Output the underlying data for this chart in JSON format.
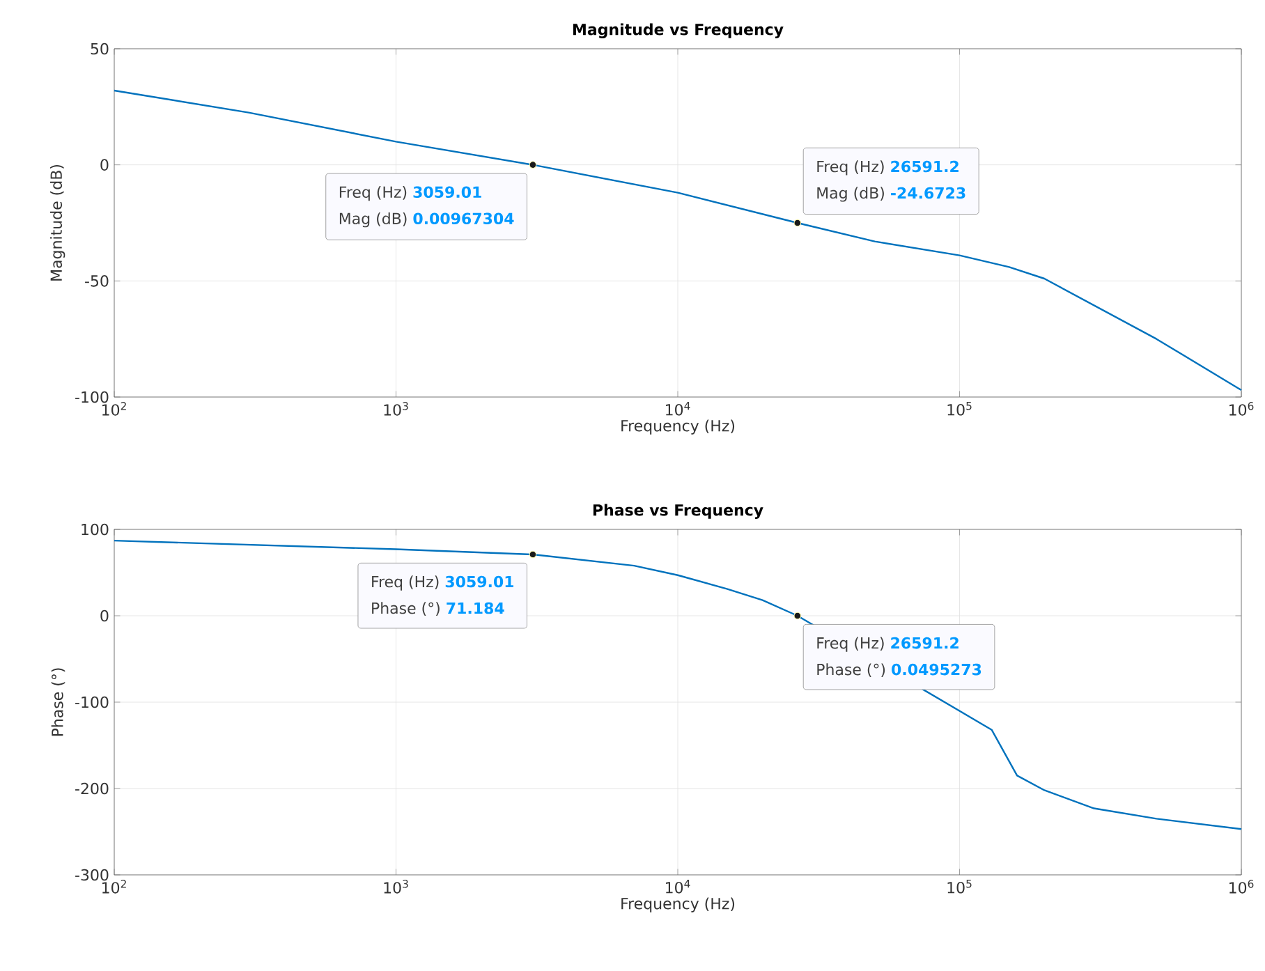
{
  "chart_data": [
    {
      "type": "line",
      "title": "Magnitude vs Frequency",
      "xlabel": "Frequency (Hz)",
      "ylabel": "Magnitude (dB)",
      "log": "x",
      "grid": true,
      "xlim": [
        100,
        1000000
      ],
      "ylim": [
        -100,
        50
      ],
      "xticks": [
        {
          "value": 100,
          "label": "10$^{2}$"
        },
        {
          "value": 1000,
          "label": "10$^{3}$"
        },
        {
          "value": 10000,
          "label": "10$^{4}$"
        },
        {
          "value": 100000,
          "label": "10$^{5}$"
        },
        {
          "value": 1000000,
          "label": "10$^{6}$"
        }
      ],
      "yticks": [
        -100,
        -50,
        0,
        50
      ],
      "series": [
        {
          "color": "#0072bd",
          "x": [
            100,
            300,
            1000,
            3059.01,
            10000,
            26591.2,
            50000,
            100000,
            150000,
            200000,
            500000,
            1000000
          ],
          "values": [
            32,
            22.5,
            10,
            0,
            -12,
            -25,
            -33,
            -39,
            -44,
            -49,
            -75,
            -97
          ]
        },
        {
          "type": "scatter",
          "color": "#1a1a1a",
          "x": [
            3059.01,
            26591.2
          ],
          "values": [
            0,
            -25
          ]
        }
      ],
      "annotations": [
        "Freq (Hz) **3059.01**",
        "Mag (dB) **0.00967304**",
        "Freq (Hz) **26591.2**",
        "Mag (dB) **-24.6723**"
      ]
    },
    {
      "type": "line",
      "title": "Phase vs Frequency",
      "xlabel": "Frequency (Hz)",
      "ylabel": "Phase (°)",
      "log": "x",
      "grid": true,
      "xlim": [
        100,
        1000000
      ],
      "ylim": [
        -300,
        100
      ],
      "xticks": [
        {
          "value": 100,
          "label": "10$^{2}$"
        },
        {
          "value": 1000,
          "label": "10$^{3}$"
        },
        {
          "value": 10000,
          "label": "10$^{4}$"
        },
        {
          "value": 100000,
          "label": "10$^{5}$"
        },
        {
          "value": 1000000,
          "label": "10$^{6}$"
        }
      ],
      "yticks": [
        -300,
        -200,
        -100,
        0,
        100
      ],
      "series": [
        {
          "color": "#0072bd",
          "x": [
            100,
            1000,
            3059.01,
            7000,
            10000,
            15000,
            20000,
            26591.2,
            130000,
            160000,
            200000,
            300000,
            500000,
            1000000
          ],
          "values": [
            87,
            77,
            71,
            58,
            47,
            31,
            18,
            0,
            -132,
            -185,
            -202,
            -223,
            -235,
            -247
          ]
        },
        {
          "type": "scatter",
          "color": "#1a1a1a",
          "x": [
            3059.01,
            26591.2
          ],
          "values": [
            71,
            0
          ]
        }
      ],
      "annotations": [
        "Freq (Hz) **3059.01**",
        "Phase (°) **71.184**",
        "Freq (Hz) **26591.2**",
        "Phase (°) **0.0495273**"
      ]
    }
  ]
}
